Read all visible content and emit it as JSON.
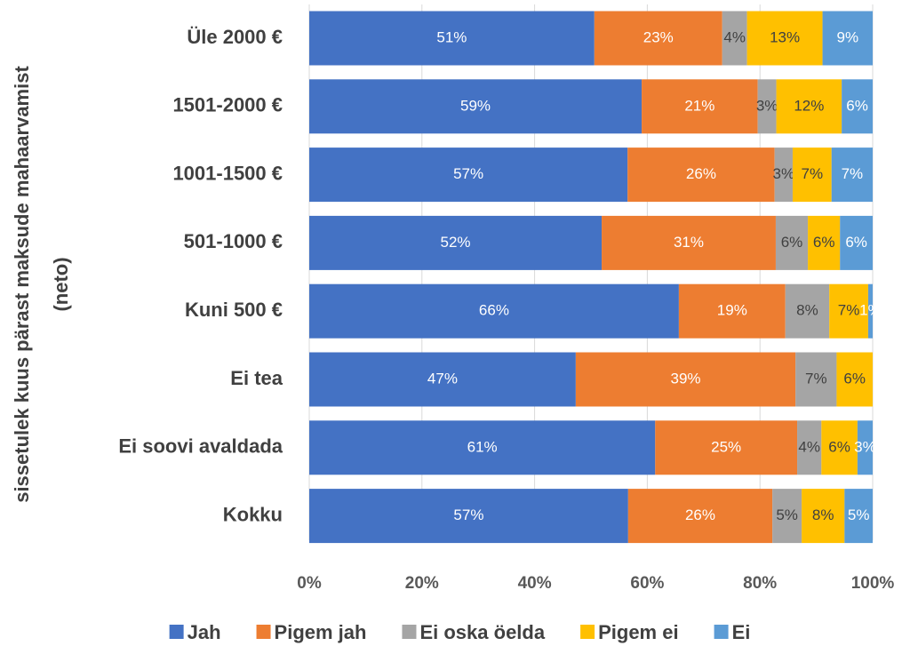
{
  "chart_data": {
    "type": "stacked_bar_horizontal",
    "ylabel": [
      "sissetulek kuus pärast maksude mahaarvamist",
      "(neto)"
    ],
    "categories": [
      "Üle 2000 €",
      "1501-2000 €",
      "1001-1500 €",
      "501-1000 €",
      "Kuni 500 €",
      "Ei tea",
      "Ei soovi avaldada",
      "Kokku"
    ],
    "series": [
      {
        "name": "Jah",
        "color": "#4472c4",
        "label_color": "#ffffff",
        "values": [
          50.6,
          59.0,
          56.5,
          51.9,
          65.6,
          47.3,
          61.4,
          56.6
        ],
        "value_labels": [
          "51%",
          "59%",
          "57%",
          "52%",
          "66%",
          "47%",
          "61%",
          "57%"
        ]
      },
      {
        "name": "Pigem jah",
        "color": "#ed7d31",
        "label_color": "#ffffff",
        "values": [
          22.7,
          20.6,
          26.1,
          30.9,
          18.9,
          39.0,
          25.2,
          25.6
        ],
        "value_labels": [
          "23%",
          "21%",
          "26%",
          "31%",
          "19%",
          "39%",
          "25%",
          "26%"
        ]
      },
      {
        "name": "Ei oska öelda",
        "color": "#a5a5a5",
        "label_color": "#404040",
        "values": [
          4.4,
          3.3,
          3.2,
          5.7,
          7.8,
          7.3,
          4.3,
          5.2
        ],
        "value_labels": [
          "4%",
          "3%",
          "3%",
          "6%",
          "8%",
          "7%",
          "4%",
          "5%"
        ]
      },
      {
        "name": "Pigem ei",
        "color": "#ffc000",
        "label_color": "#404040",
        "values": [
          13.4,
          11.6,
          6.9,
          5.7,
          6.9,
          6.4,
          6.4,
          7.6
        ],
        "value_labels": [
          "13%",
          "12%",
          "7%",
          "6%",
          "7%",
          "6%",
          "6%",
          "8%"
        ]
      },
      {
        "name": "Ei",
        "color": "#5b9bd5",
        "label_color": "#ffffff",
        "values": [
          8.9,
          5.5,
          7.3,
          5.8,
          0.8,
          0,
          2.7,
          5.0
        ],
        "value_labels": [
          "9%",
          "6%",
          "7%",
          "6%",
          "1%",
          null,
          "3%",
          "5%"
        ]
      }
    ],
    "xlim": [
      0,
      100
    ],
    "xticks": [
      {
        "value": 0,
        "label": "0%"
      },
      {
        "value": 20,
        "label": "20%"
      },
      {
        "value": 40,
        "label": "40%"
      },
      {
        "value": 60,
        "label": "60%"
      },
      {
        "value": 80,
        "label": "80%"
      },
      {
        "value": 100,
        "label": "100%"
      }
    ],
    "grid": true,
    "legend": "bottom"
  }
}
